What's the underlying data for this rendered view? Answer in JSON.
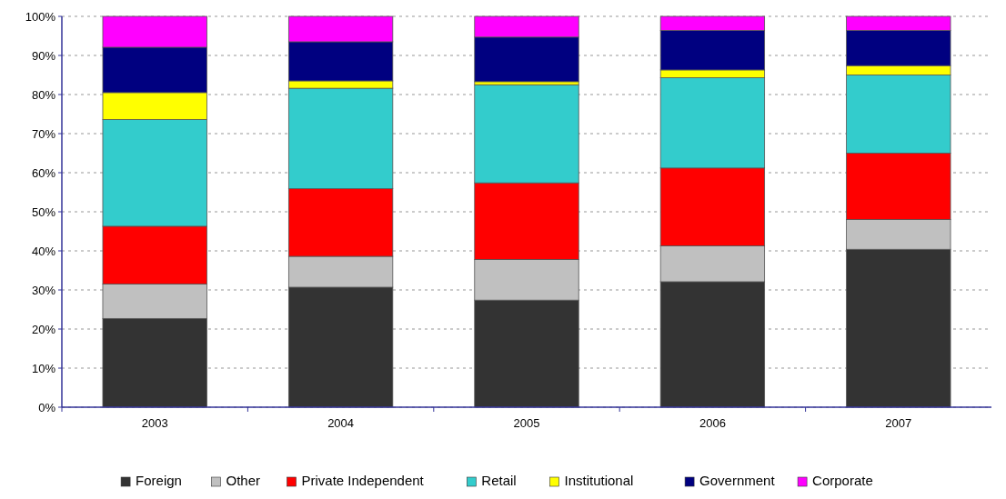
{
  "chart_data": {
    "type": "bar",
    "stacked": true,
    "categories": [
      "2003",
      "2004",
      "2005",
      "2006",
      "2007"
    ],
    "series": [
      {
        "name": "Foreign",
        "color": "#333333",
        "values": [
          22.7,
          30.7,
          27.4,
          32.1,
          40.4
        ]
      },
      {
        "name": "Other",
        "color": "#c0c0c0",
        "values": [
          8.8,
          7.9,
          10.4,
          9.2,
          7.6
        ]
      },
      {
        "name": "Private Independent",
        "color": "#ff0000",
        "values": [
          14.8,
          17.3,
          19.6,
          19.9,
          17.0
        ]
      },
      {
        "name": "Retail",
        "color": "#33cccc",
        "values": [
          27.3,
          25.7,
          25.1,
          23.1,
          20.0
        ]
      },
      {
        "name": "Institutional",
        "color": "#ffff00",
        "values": [
          6.9,
          1.9,
          0.8,
          2.0,
          2.4
        ]
      },
      {
        "name": "Government",
        "color": "#000080",
        "values": [
          11.6,
          10.0,
          11.4,
          10.1,
          9.0
        ]
      },
      {
        "name": "Corporate",
        "color": "#ff00ff",
        "values": [
          7.9,
          6.5,
          5.3,
          3.6,
          3.6
        ]
      }
    ],
    "ylim": [
      0,
      100
    ],
    "yticks": [
      {
        "value": 0,
        "label": "0%"
      },
      {
        "value": 10,
        "label": "10%"
      },
      {
        "value": 20,
        "label": "20%"
      },
      {
        "value": 30,
        "label": "30%"
      },
      {
        "value": 40,
        "label": "40%"
      },
      {
        "value": 50,
        "label": "50%"
      },
      {
        "value": 60,
        "label": "60%"
      },
      {
        "value": 70,
        "label": "70%"
      },
      {
        "value": 80,
        "label": "80%"
      },
      {
        "value": 90,
        "label": "90%"
      },
      {
        "value": 100,
        "label": "100%"
      }
    ],
    "grid": "y",
    "legend": "bottom"
  }
}
